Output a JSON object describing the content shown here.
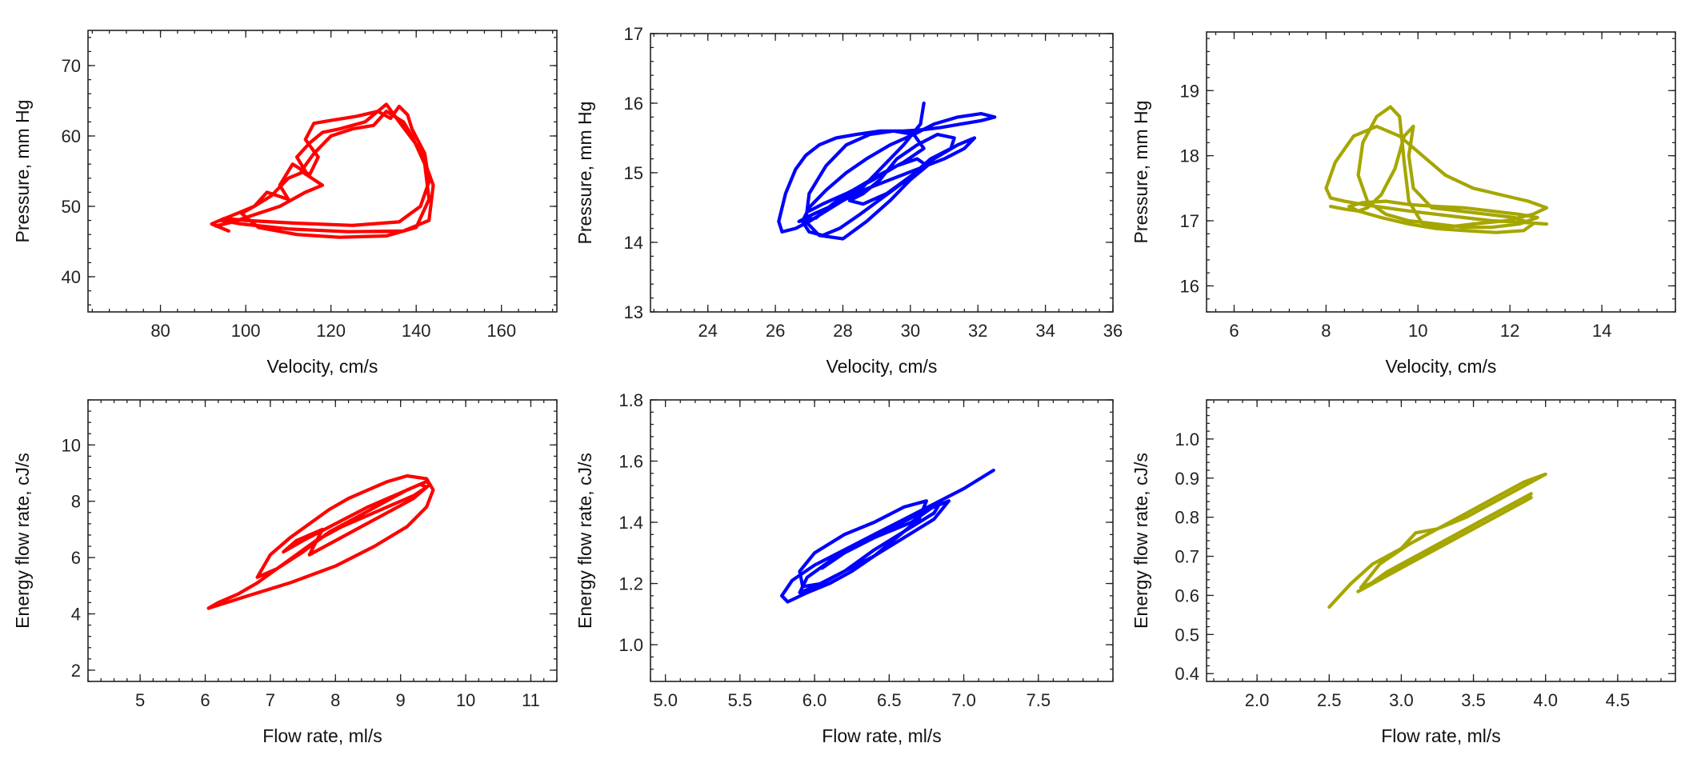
{
  "colors": {
    "red": "#ff0000",
    "blue": "#0000ff",
    "olive": "#a6a600"
  },
  "chart_data": [
    {
      "type": "line",
      "title": "",
      "xlabel": "Velocity, cm/s",
      "ylabel": "Pressure, mm Hg",
      "xlim": [
        63,
        173
      ],
      "ylim": [
        35,
        75
      ],
      "xticks": [
        80,
        100,
        120,
        140,
        160
      ],
      "yticks": [
        40,
        50,
        60,
        70
      ],
      "xticklabels": [
        "80",
        "100",
        "120",
        "140",
        "160"
      ],
      "yticklabels": [
        "40",
        "50",
        "60",
        "70"
      ],
      "color": "red",
      "series": [
        {
          "x": [
            96,
            92,
            95,
            100,
            112,
            125,
            136,
            141,
            143,
            142,
            139,
            138,
            136,
            134,
            131,
            126,
            120,
            116,
            114,
            117,
            115,
            111,
            108,
            110,
            105,
            102,
            98,
            94,
            99,
            110,
            124,
            137,
            143,
            144,
            141,
            136,
            133,
            128,
            122,
            118,
            115,
            112,
            114,
            110,
            106,
            102,
            99,
            103,
            112,
            122,
            133,
            140,
            143,
            142,
            139,
            137,
            133,
            130,
            125,
            120,
            116,
            113,
            118,
            114,
            108,
            103,
            97,
            93
          ],
          "y": [
            46.5,
            47.5,
            48.3,
            48,
            47.6,
            47.3,
            47.8,
            50,
            53.5,
            57.5,
            61,
            63,
            64.2,
            62.5,
            63.5,
            62.8,
            62.2,
            61.8,
            59.5,
            57,
            54.5,
            56,
            53,
            51,
            52,
            50,
            49,
            48,
            47.5,
            46.8,
            46.4,
            46.5,
            48,
            53,
            58,
            62,
            64.5,
            62,
            61,
            60.5,
            59,
            57,
            55,
            54,
            51.5,
            50,
            49,
            47,
            46,
            45.6,
            45.8,
            47,
            51,
            56,
            60,
            62,
            63.5,
            61.5,
            61,
            60,
            57.5,
            55,
            53,
            52,
            50,
            49,
            47.8,
            47.2
          ]
        }
      ]
    },
    {
      "type": "line",
      "title": "",
      "xlabel": "Velocity, cm/s",
      "ylabel": "Pressure, mm Hg",
      "xlim": [
        22.3,
        36
      ],
      "ylim": [
        13,
        17
      ],
      "xticks": [
        24,
        26,
        28,
        30,
        32,
        34,
        36
      ],
      "yticks": [
        13,
        14,
        15,
        16,
        17
      ],
      "xticklabels": [
        "24",
        "26",
        "28",
        "30",
        "32",
        "34",
        "36"
      ],
      "yticklabels": [
        "13",
        "14",
        "15",
        "16",
        "17"
      ],
      "color": "blue",
      "series": [
        {
          "x": [
            30.4,
            30.3,
            29.8,
            29.2,
            28.6,
            28,
            27.5,
            27,
            26.6,
            26.2,
            26.1,
            26.3,
            26.6,
            26.9,
            27.3,
            27.8,
            28.4,
            29.1,
            29.8,
            30.4,
            30.9,
            31.5,
            32.1,
            32.5,
            32.1,
            31.4,
            30.7,
            30.1,
            29.4,
            28.7,
            28.1,
            27.5,
            27,
            26.8,
            27,
            27.4,
            27.9,
            28.5,
            29.2,
            29.9,
            30.6,
            31.2,
            31.3,
            30.8,
            30.2,
            29.6,
            29.1,
            28.6,
            28.2,
            28.6,
            29.3,
            30,
            30.7,
            31.4,
            31.9,
            31.6,
            31,
            30.2,
            29.4,
            28.6,
            27.8,
            27.1,
            26.7,
            27.2,
            27.7,
            28.3,
            29,
            29.8,
            30.4,
            30.1,
            29.5,
            28.8,
            28.1,
            27.5,
            27,
            26.9,
            27.3,
            28,
            28.7,
            29.4,
            30,
            30.5,
            30.2,
            29.6,
            28.9,
            28.1,
            27.4,
            27
          ],
          "y": [
            16,
            15.7,
            15.4,
            15.1,
            14.8,
            14.6,
            14.45,
            14.3,
            14.2,
            14.15,
            14.3,
            14.7,
            15.05,
            15.25,
            15.4,
            15.5,
            15.55,
            15.6,
            15.6,
            15.62,
            15.65,
            15.7,
            15.75,
            15.8,
            15.85,
            15.8,
            15.7,
            15.55,
            15.4,
            15.2,
            15,
            14.75,
            14.5,
            14.3,
            14.15,
            14.1,
            14.2,
            14.4,
            14.65,
            14.9,
            15.2,
            15.35,
            15.5,
            15.55,
            15.4,
            15.2,
            14.9,
            14.7,
            14.6,
            14.55,
            14.7,
            14.95,
            15.2,
            15.4,
            15.5,
            15.35,
            15.2,
            15.05,
            14.9,
            14.75,
            14.55,
            14.4,
            14.3,
            14.35,
            14.55,
            14.75,
            14.95,
            15.15,
            15.35,
            15.55,
            15.6,
            15.55,
            15.4,
            15.1,
            14.7,
            14.3,
            14.1,
            14.05,
            14.3,
            14.6,
            14.9,
            15.1,
            15.2,
            15.1,
            14.9,
            14.7,
            14.55,
            14.45
          ]
        }
      ]
    },
    {
      "type": "line",
      "title": "",
      "xlabel": "Velocity, cm/s",
      "ylabel": "Pressure, mm Hg",
      "xlim": [
        5.4,
        15.6
      ],
      "ylim": [
        15.6,
        19.9
      ],
      "xticks": [
        6,
        8,
        10,
        12,
        14
      ],
      "yticks": [
        16,
        17,
        18,
        19
      ],
      "xticklabels": [
        "6",
        "8",
        "10",
        "12",
        "14"
      ],
      "yticklabels": [
        "16",
        "17",
        "18",
        "19"
      ],
      "color": "olive",
      "series": [
        {
          "x": [
            12.8,
            12.2,
            11.6,
            11,
            10.4,
            9.8,
            9.3,
            8.8,
            8.4,
            8.1,
            8,
            8.2,
            8.6,
            9.1,
            9.6,
            10.1,
            10.6,
            11.2,
            11.8,
            12.4,
            12.8,
            12.5,
            11.9,
            11.2,
            10.6,
            10.1,
            9.8,
            9.7,
            9.6,
            9.4,
            9.1,
            8.8,
            8.7,
            8.9,
            9.3,
            9.8,
            10.4,
            11,
            11.6,
            12.2,
            12.6,
            12.2,
            11.6,
            11,
            10.4,
            9.8,
            9.3,
            8.8,
            8.5,
            8.7,
            9.2,
            9.8,
            10.4,
            11,
            11.7,
            12.3,
            12.5,
            12.1,
            11.5,
            10.9,
            10.3,
            9.9,
            9.8,
            9.9,
            9.7,
            9.5,
            9.2,
            8.9,
            8.7,
            8.4,
            8.1
          ],
          "y": [
            16.95,
            16.98,
            17,
            17.05,
            17.1,
            17.15,
            17.2,
            17.25,
            17.3,
            17.35,
            17.5,
            17.9,
            18.3,
            18.45,
            18.3,
            18,
            17.7,
            17.5,
            17.4,
            17.3,
            17.2,
            17.1,
            17,
            16.95,
            16.9,
            16.95,
            17.3,
            17.9,
            18.6,
            18.75,
            18.6,
            18.2,
            17.7,
            17.3,
            17.1,
            17,
            16.95,
            16.9,
            16.9,
            16.95,
            17.05,
            17.1,
            17.15,
            17.2,
            17.22,
            17.25,
            17.3,
            17.28,
            17.22,
            17.15,
            17.05,
            16.95,
            16.88,
            16.85,
            16.82,
            16.85,
            16.95,
            17.05,
            17.1,
            17.15,
            17.2,
            17.5,
            18,
            18.45,
            18.3,
            17.8,
            17.4,
            17.2,
            17.15,
            17.18,
            17.22
          ]
        }
      ]
    },
    {
      "type": "line",
      "title": "",
      "xlabel": "Flow rate, ml/s",
      "ylabel": "Energy flow rate, cJ/s",
      "xlim": [
        4.2,
        11.4
      ],
      "ylim": [
        1.6,
        11.6
      ],
      "xticks": [
        5,
        6,
        7,
        8,
        9,
        10,
        11
      ],
      "yticks": [
        2,
        4,
        6,
        8,
        10
      ],
      "xticklabels": [
        "5",
        "6",
        "7",
        "8",
        "9",
        "10",
        "11"
      ],
      "yticklabels": [
        "2",
        "4",
        "6",
        "8",
        "10"
      ],
      "color": "red",
      "series": [
        {
          "x": [
            6.05,
            6.6,
            7.3,
            8,
            8.6,
            9.1,
            9.4,
            9.5,
            9.4,
            9.1,
            8.8,
            8.5,
            8.2,
            7.9,
            7.6,
            7.3,
            7,
            6.8,
            7.1,
            7.5,
            7.9,
            8.3,
            8.7,
            9.1,
            9.4,
            9.45,
            9.2,
            8.8,
            8.4,
            8,
            7.6,
            7.8,
            7.4,
            7.2,
            7.5,
            8,
            8.5,
            9,
            9.3,
            9.4,
            9.2,
            8.9,
            8.5,
            8.1,
            7.7,
            7.4,
            7.1,
            6.8,
            6.5,
            6.2,
            6.05
          ],
          "y": [
            4.2,
            4.6,
            5.1,
            5.7,
            6.4,
            7.1,
            7.8,
            8.4,
            8.8,
            8.9,
            8.7,
            8.4,
            8.1,
            7.7,
            7.2,
            6.7,
            6.1,
            5.3,
            5.6,
            6.2,
            6.9,
            7.4,
            7.9,
            8.4,
            8.7,
            8.6,
            8.1,
            7.6,
            7.1,
            6.6,
            6.1,
            7,
            6.6,
            6.2,
            6.6,
            7.2,
            7.8,
            8.3,
            8.6,
            8.5,
            8.2,
            7.9,
            7.5,
            7.1,
            6.6,
            6.1,
            5.6,
            5.1,
            4.7,
            4.4,
            4.2
          ]
        }
      ]
    },
    {
      "type": "line",
      "title": "",
      "xlabel": "Flow rate, ml/s",
      "ylabel": "Energy flow rate, cJ/s",
      "xlim": [
        4.9,
        8
      ],
      "ylim": [
        0.88,
        1.8
      ],
      "xticks": [
        5.0,
        5.5,
        6.0,
        6.5,
        7.0,
        7.5
      ],
      "yticks": [
        1.0,
        1.2,
        1.4,
        1.6,
        1.8
      ],
      "xticklabels": [
        "5.0",
        "5.5",
        "6.0",
        "6.5",
        "7.0",
        "7.5"
      ],
      "yticklabels": [
        "1.0",
        "1.2",
        "1.4",
        "1.6",
        "1.8"
      ],
      "color": "blue",
      "series": [
        {
          "x": [
            7.2,
            7.0,
            6.8,
            6.6,
            6.4,
            6.2,
            6.0,
            5.85,
            5.78,
            5.82,
            5.95,
            6.1,
            6.25,
            6.4,
            6.55,
            6.7,
            6.75,
            6.6,
            6.4,
            6.2,
            6.0,
            5.9,
            5.92,
            6.05,
            6.2,
            6.4,
            6.6,
            6.8,
            6.9,
            6.75,
            6.55,
            6.35,
            6.15,
            5.95,
            5.9,
            6.0,
            6.2,
            6.4,
            6.6,
            6.8,
            6.85,
            6.65,
            6.4,
            6.2,
            6.05
          ],
          "y": [
            1.57,
            1.51,
            1.46,
            1.41,
            1.36,
            1.31,
            1.26,
            1.21,
            1.16,
            1.14,
            1.17,
            1.2,
            1.24,
            1.29,
            1.35,
            1.41,
            1.47,
            1.45,
            1.4,
            1.36,
            1.3,
            1.24,
            1.19,
            1.2,
            1.24,
            1.29,
            1.35,
            1.41,
            1.47,
            1.44,
            1.39,
            1.34,
            1.29,
            1.22,
            1.17,
            1.19,
            1.24,
            1.31,
            1.37,
            1.43,
            1.47,
            1.4,
            1.35,
            1.3,
            1.25
          ]
        }
      ]
    },
    {
      "type": "line",
      "title": "",
      "xlabel": "Flow rate, ml/s",
      "ylabel": "Energy flow rate, cJ/s",
      "xlim": [
        1.65,
        4.9
      ],
      "ylim": [
        0.38,
        1.1
      ],
      "xticks": [
        2.0,
        2.5,
        3.0,
        3.5,
        4.0,
        4.5
      ],
      "yticks": [
        0.4,
        0.5,
        0.6,
        0.7,
        0.8,
        0.9,
        1.0
      ],
      "xticklabels": [
        "2.0",
        "2.5",
        "3.0",
        "3.5",
        "4.0",
        "4.5"
      ],
      "yticklabels": [
        "0.4",
        "0.5",
        "0.6",
        "0.7",
        "0.8",
        "0.9",
        "1.0"
      ],
      "color": "olive",
      "series": [
        {
          "x": [
            2.5,
            2.65,
            2.8,
            3.0,
            3.1,
            3.25,
            3.45,
            3.65,
            3.85,
            4.0,
            3.85,
            3.65,
            3.45,
            3.25,
            3.05,
            2.85,
            2.72,
            2.85,
            3.05,
            3.25,
            3.45,
            3.65,
            3.85,
            3.9,
            3.7,
            3.5,
            3.3,
            3.1,
            2.9,
            2.75,
            2.7,
            2.9,
            3.1,
            3.3,
            3.5,
            3.7,
            3.9
          ],
          "y": [
            0.57,
            0.63,
            0.68,
            0.72,
            0.76,
            0.77,
            0.8,
            0.84,
            0.88,
            0.91,
            0.89,
            0.85,
            0.81,
            0.77,
            0.73,
            0.68,
            0.62,
            0.64,
            0.68,
            0.72,
            0.76,
            0.8,
            0.84,
            0.86,
            0.82,
            0.78,
            0.74,
            0.7,
            0.66,
            0.62,
            0.61,
            0.65,
            0.69,
            0.73,
            0.77,
            0.81,
            0.85
          ]
        }
      ]
    }
  ]
}
